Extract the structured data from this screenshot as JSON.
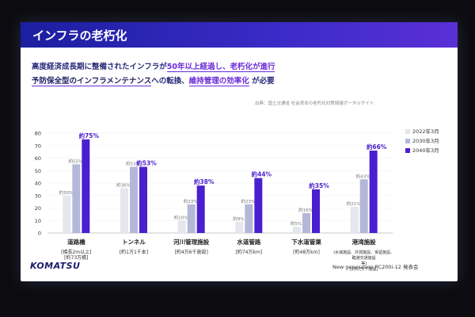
{
  "slide": {
    "title": "インフラの老朽化",
    "intro_line1_a": "高度経済成長期に整備されたインフラが",
    "intro_line1_b": "50年以上経過し、老朽化が進行",
    "intro_line2_a": "予防保全型のインフラメンテナンス",
    "intro_line2_b": "への転換、",
    "intro_line2_c": "維持管理の効率化",
    "intro_line2_d": "が必要",
    "source": "出典：国土交通省 社会資本の老朽化対策情報ポータルサイト",
    "footer_logo": "KOMATSU",
    "footer_text": "New generation PC200i-12 発表会"
  },
  "chart_data": {
    "type": "bar",
    "ylim": [
      0,
      80
    ],
    "yticks": [
      0,
      10,
      20,
      30,
      40,
      50,
      60,
      70,
      80
    ],
    "categories": [
      "道路橋",
      "トンネル",
      "河川管理施設",
      "水道管路",
      "下水道管渠",
      "港湾施設"
    ],
    "category_notes": [
      [
        "[橋長2m以上]",
        "[約73万橋]"
      ],
      [
        "[約1万1千本]"
      ],
      [
        "[約4万6千施設]"
      ],
      [
        "[約74万km]"
      ],
      [
        "[約48万km]"
      ],
      [
        "(水域施設、外郭施設、係留施設、",
        "臨港交通施設",
        "等)",
        "[約6万1千施設]"
      ]
    ],
    "series": [
      {
        "name": "2022年3月",
        "color": "#e6e6ee",
        "values": [
          30,
          36,
          10,
          9,
          5,
          21
        ],
        "labels": [
          "約30%",
          "約36%",
          "約10%",
          "約9%",
          "約5%",
          "約21%"
        ]
      },
      {
        "name": "2030年3月",
        "color": "#b4b8d8",
        "values": [
          55,
          53,
          23,
          23,
          16,
          43
        ],
        "labels": [
          "約55%",
          "約53%",
          "約23%",
          "約23%",
          "約16%",
          "約43%"
        ]
      },
      {
        "name": "2040年3月",
        "color": "#4a1fd0",
        "values": [
          75,
          53,
          38,
          44,
          35,
          66
        ],
        "labels": [
          "約75%",
          "約53%",
          "約38%",
          "約44%",
          "約35%",
          "約66%"
        ]
      }
    ]
  }
}
